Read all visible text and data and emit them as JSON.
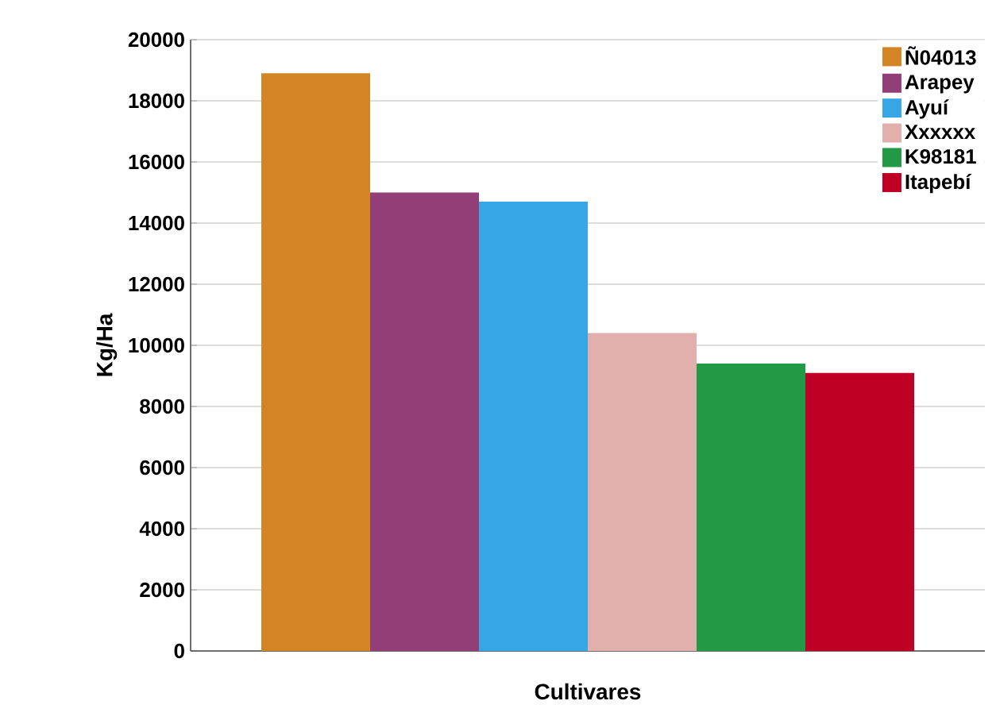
{
  "chart_data": {
    "type": "bar",
    "xlabel": "Cultivares",
    "ylabel": "Kg/Ha",
    "categories": [
      null
    ],
    "series": [
      {
        "name": "Ñ04013",
        "color": "#d38424",
        "values": [
          18900
        ]
      },
      {
        "name": "Arapey",
        "color": "#923f78",
        "values": [
          15000
        ]
      },
      {
        "name": "Ayuí",
        "color": "#36a6e6",
        "values": [
          14700
        ]
      },
      {
        "name": "Xxxxxx",
        "color": "#e2b0ac",
        "values": [
          10400
        ]
      },
      {
        "name": "K98181",
        "color": "#229a45",
        "values": [
          9400
        ]
      },
      {
        "name": "Itapebí",
        "color": "#bd0024",
        "values": [
          9100
        ]
      }
    ],
    "ylim": [
      0,
      20000
    ],
    "yticks": [
      0,
      2000,
      4000,
      6000,
      8000,
      10000,
      12000,
      14000,
      16000,
      18000,
      20000
    ],
    "grid": "y",
    "legend": "top right"
  }
}
